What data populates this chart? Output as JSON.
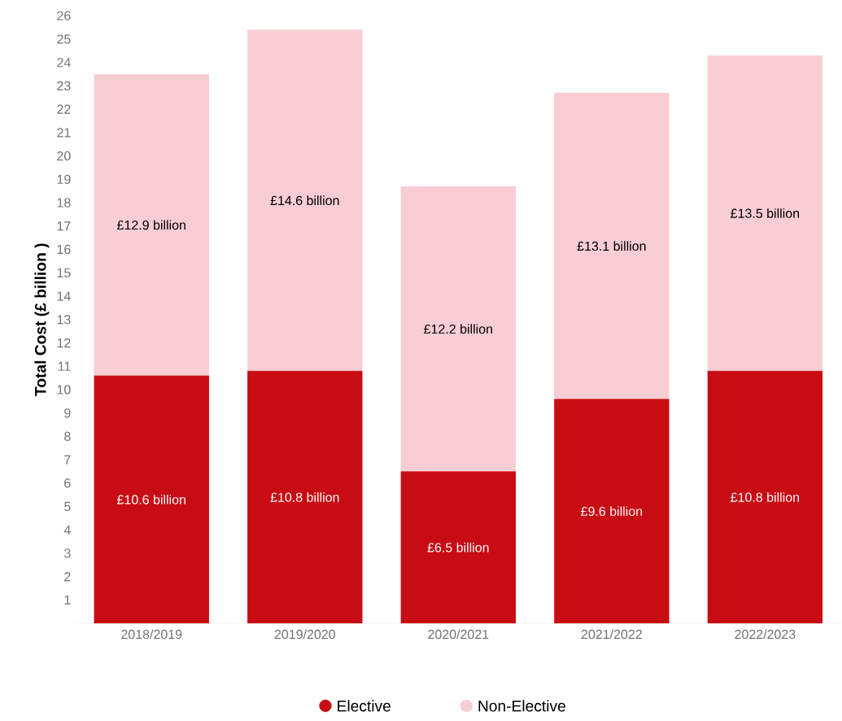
{
  "chart_data": {
    "type": "bar",
    "stacked": true,
    "ylabel": "Total Cost (£ billion )",
    "categories": [
      "2018/2019",
      "2019/2020",
      "2020/2021",
      "2021/2022",
      "2022/2023"
    ],
    "series": [
      {
        "name": "Elective",
        "color": "#c80c14",
        "values": [
          10.6,
          10.8,
          6.5,
          9.6,
          10.8
        ],
        "value_labels": [
          "£10.6 billion",
          "£10.8 billion",
          "£6.5 billion",
          "£9.6 billion",
          "£10.8 billion"
        ]
      },
      {
        "name": "Non-Elective",
        "color": "#f8cdd3",
        "values": [
          12.9,
          14.6,
          12.2,
          13.1,
          13.5
        ],
        "value_labels": [
          "£12.9 billion",
          "£14.6 billion",
          "£12.2 billion",
          "£13.1 billion",
          "£13.5 billion"
        ]
      }
    ],
    "ylim": [
      0,
      26
    ],
    "yticks": [
      1,
      2,
      3,
      4,
      5,
      6,
      7,
      8,
      9,
      10,
      11,
      12,
      13,
      14,
      15,
      16,
      17,
      18,
      19,
      20,
      21,
      22,
      23,
      24,
      25,
      26
    ],
    "grid": false,
    "legend": "bottom",
    "marker": "circle"
  }
}
